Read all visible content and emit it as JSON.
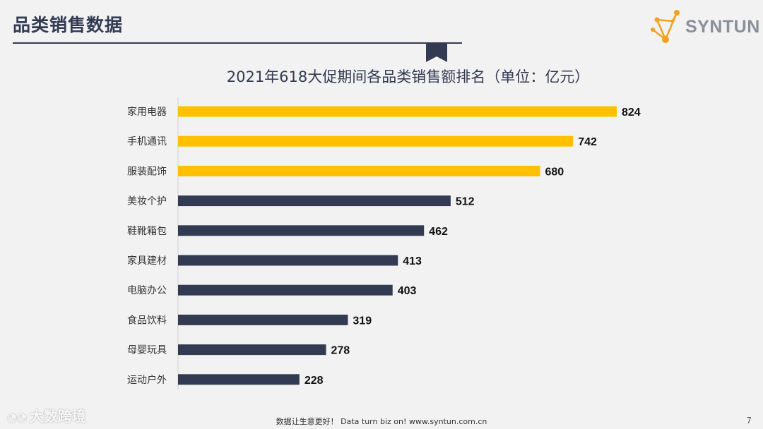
{
  "header": {
    "title": "品类销售数据",
    "logo_text": "SYNTUN"
  },
  "chart_data": {
    "type": "bar",
    "orientation": "horizontal",
    "title": "2021年618大促期间各品类销售额排名（单位：亿元）",
    "categories": [
      "家用电器",
      "手机通讯",
      "服装配饰",
      "美妆个护",
      "鞋靴箱包",
      "家具建材",
      "电脑办公",
      "食品饮料",
      "母婴玩具",
      "运动户外"
    ],
    "values": [
      824,
      742,
      680,
      512,
      462,
      413,
      403,
      319,
      278,
      228
    ],
    "value_labels": [
      "824",
      "742",
      "680",
      "512",
      "462",
      "413",
      "403",
      "319",
      "278",
      "228"
    ],
    "highlight_count": 3,
    "xlim": [
      0,
      824
    ],
    "colors": {
      "highlight": "#ffc000",
      "normal": "#333b52"
    },
    "xlabel": "",
    "ylabel": ""
  },
  "footer": {
    "text": "数据让生意更好！ Data turn biz on!  www.syntun.com.cn",
    "page_number": "7"
  },
  "watermark": {
    "text": "大数跨境"
  },
  "colors": {
    "primary": "#333b52",
    "accent": "#ffc000",
    "logo_orange": "#f5a020"
  }
}
